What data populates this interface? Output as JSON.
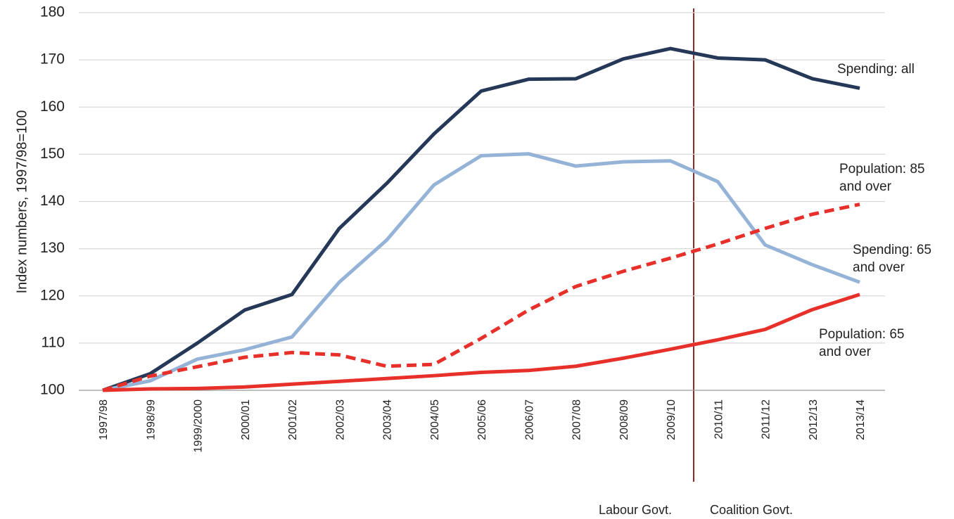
{
  "chart_data": {
    "type": "line",
    "y_label": "Index numbers, 1997/98=100",
    "categories": [
      "1997/98",
      "1998/99",
      "1999/2000",
      "2000/01",
      "2001/02",
      "2002/03",
      "2003/04",
      "2004/05",
      "2005/06",
      "2006/07",
      "2007/08",
      "2008/09",
      "2009/10",
      "2010/11",
      "2011/12",
      "2012/13",
      "2013/14"
    ],
    "series": [
      {
        "name": "Spending: all",
        "color": "#253858",
        "style": "solid",
        "values": [
          100,
          103.5,
          110,
          117,
          120.3,
          134.3,
          143.8,
          154.3,
          163.4,
          165.9,
          166,
          170.2,
          172.4,
          170.4,
          170,
          166,
          164
        ]
      },
      {
        "name": "Spending: 65 and over",
        "color": "#95b3d7",
        "style": "solid",
        "values": [
          100,
          102,
          106.6,
          108.6,
          111.3,
          122.9,
          131.8,
          143.5,
          149.7,
          150.1,
          147.5,
          148.4,
          148.6,
          144.2,
          130.8,
          126.6,
          122.9
        ]
      },
      {
        "name": "Population: 85 and over",
        "color": "#e8302a",
        "style": "dashed",
        "values": [
          100,
          103,
          105,
          107,
          108,
          107.5,
          105.1,
          105.5,
          111,
          117,
          122,
          125.2,
          128,
          131,
          134.3,
          137.3,
          139.4
        ]
      },
      {
        "name": "Population: 65 and over",
        "color": "#e8302a",
        "style": "solid",
        "values": [
          100,
          100.3,
          100.4,
          100.7,
          101.3,
          101.9,
          102.5,
          103.1,
          103.8,
          104.2,
          105.1,
          106.8,
          108.7,
          110.7,
          112.9,
          117.1,
          120.3
        ]
      }
    ],
    "ylim": [
      100,
      180
    ],
    "yticks": [
      100,
      110,
      120,
      130,
      140,
      150,
      160,
      170,
      180
    ],
    "grid": true,
    "annotations": [
      "Labour Govt.",
      "Coalition Govt."
    ]
  }
}
